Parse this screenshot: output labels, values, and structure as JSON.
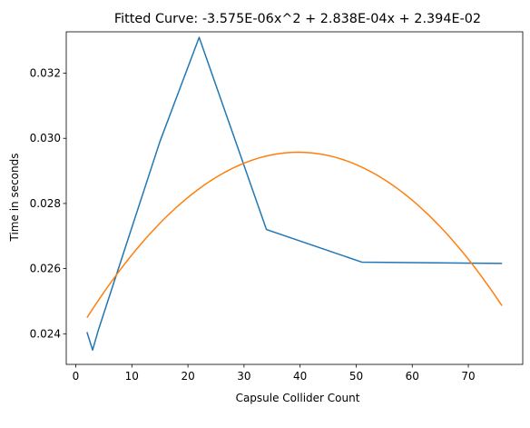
{
  "chart_data": {
    "type": "line",
    "title": "Fitted Curve: -3.575E-06x^2 + 2.838E-04x + 2.394E-02",
    "xlabel": "Capsule Collider Count",
    "ylabel": "Time in seconds",
    "xlim": [
      -1.7,
      79.7
    ],
    "ylim": [
      0.02306,
      0.03327
    ],
    "xticks": [
      0,
      10,
      20,
      30,
      40,
      50,
      60,
      70
    ],
    "yticks": [
      0.024,
      0.026,
      0.028,
      0.03,
      0.032
    ],
    "ytick_labels": [
      "0.024",
      "0.026",
      "0.028",
      "0.030",
      "0.032"
    ],
    "grid": false,
    "series": [
      {
        "color": "#1f77b4",
        "kind": "measured",
        "x": [
          2,
          3,
          4,
          15,
          22,
          34,
          51,
          76
        ],
        "y": [
          0.02405,
          0.0235,
          0.0241,
          0.0299,
          0.0331,
          0.0272,
          0.0262,
          0.02616
        ]
      },
      {
        "color": "#ff7f0e",
        "kind": "fitted",
        "coefficients": [
          -3.575e-06,
          0.0002838,
          0.02394
        ],
        "x_range": [
          2,
          76
        ]
      }
    ]
  }
}
